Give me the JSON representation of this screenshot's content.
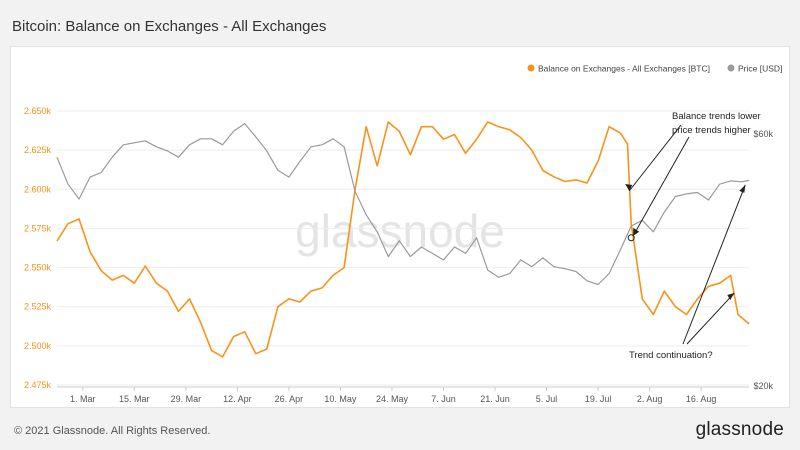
{
  "page": {
    "title": "Bitcoin: Balance on Exchanges - All Exchanges",
    "copyright": "© 2021 Glassnode. All Rights Reserved.",
    "brand": "glassnode",
    "watermark": "glassnode"
  },
  "colors": {
    "balance": "#f7931a",
    "price": "#9a9a9a",
    "left_axis_text": "#f7931a",
    "right_axis_text": "#555555",
    "annotation": "#222222"
  },
  "chart_data": {
    "type": "line",
    "title": "Bitcoin: Balance on Exchanges - All Exchanges",
    "x_ticks": [
      "1. Mar",
      "15. Mar",
      "29. Mar",
      "12. Apr",
      "26. Apr",
      "10. May",
      "24. May",
      "7. Jun",
      "21. Jun",
      "5. Jul",
      "19. Jul",
      "2. Aug",
      "16. Aug"
    ],
    "x_range": [
      "2021-02-22",
      "2021-08-29"
    ],
    "y_left": {
      "ticks": [
        "2.650k",
        "2.625k",
        "2.600k",
        "2.575k",
        "2.550k",
        "2.525k",
        "2.500k",
        "2.475k"
      ],
      "range": [
        2475000,
        2650000
      ]
    },
    "y_right": {
      "scale": "log",
      "ticks": [
        "$60k",
        "$20k"
      ],
      "range": [
        20000,
        60000
      ]
    },
    "legend": {
      "placement": "top-right",
      "items": [
        "Balance on Exchanges - All Exchanges [BTC]",
        "Price [USD]"
      ]
    },
    "series": [
      {
        "name": "Balance on Exchanges - All Exchanges [BTC]",
        "axis": "left",
        "x": [
          "2021-02-22",
          "2021-02-25",
          "2021-02-28",
          "2021-03-03",
          "2021-03-06",
          "2021-03-09",
          "2021-03-12",
          "2021-03-15",
          "2021-03-18",
          "2021-03-21",
          "2021-03-24",
          "2021-03-27",
          "2021-03-30",
          "2021-04-02",
          "2021-04-05",
          "2021-04-08",
          "2021-04-11",
          "2021-04-14",
          "2021-04-17",
          "2021-04-20",
          "2021-04-23",
          "2021-04-26",
          "2021-04-29",
          "2021-05-02",
          "2021-05-05",
          "2021-05-08",
          "2021-05-11",
          "2021-05-14",
          "2021-05-17",
          "2021-05-20",
          "2021-05-23",
          "2021-05-26",
          "2021-05-29",
          "2021-06-01",
          "2021-06-04",
          "2021-06-07",
          "2021-06-10",
          "2021-06-13",
          "2021-06-16",
          "2021-06-19",
          "2021-06-22",
          "2021-06-25",
          "2021-06-28",
          "2021-07-01",
          "2021-07-04",
          "2021-07-07",
          "2021-07-10",
          "2021-07-13",
          "2021-07-16",
          "2021-07-19",
          "2021-07-22",
          "2021-07-25",
          "2021-07-27",
          "2021-07-28",
          "2021-07-31",
          "2021-08-03",
          "2021-08-06",
          "2021-08-09",
          "2021-08-12",
          "2021-08-15",
          "2021-08-18",
          "2021-08-21",
          "2021-08-24",
          "2021-08-26",
          "2021-08-29"
        ],
        "values": [
          2567000,
          2578000,
          2581000,
          2560000,
          2548000,
          2542000,
          2545000,
          2540000,
          2551000,
          2540000,
          2535000,
          2522000,
          2530000,
          2515000,
          2497000,
          2493000,
          2506000,
          2509000,
          2495000,
          2498000,
          2525000,
          2530000,
          2528000,
          2535000,
          2537000,
          2545000,
          2550000,
          2600000,
          2640000,
          2615000,
          2643000,
          2637000,
          2622000,
          2640000,
          2640000,
          2632000,
          2635000,
          2623000,
          2632000,
          2643000,
          2640000,
          2638000,
          2633000,
          2625000,
          2612000,
          2608000,
          2605000,
          2606000,
          2604000,
          2618000,
          2640000,
          2636000,
          2629000,
          2578000,
          2530000,
          2520000,
          2535000,
          2525000,
          2520000,
          2530000,
          2538000,
          2540000,
          2545000,
          2520000,
          2514000
        ]
      },
      {
        "name": "Price [USD]",
        "axis": "right",
        "x": [
          "2021-02-22",
          "2021-02-25",
          "2021-02-28",
          "2021-03-03",
          "2021-03-06",
          "2021-03-09",
          "2021-03-12",
          "2021-03-15",
          "2021-03-18",
          "2021-03-21",
          "2021-03-24",
          "2021-03-27",
          "2021-03-30",
          "2021-04-02",
          "2021-04-05",
          "2021-04-08",
          "2021-04-11",
          "2021-04-14",
          "2021-04-17",
          "2021-04-20",
          "2021-04-23",
          "2021-04-26",
          "2021-04-29",
          "2021-05-02",
          "2021-05-05",
          "2021-05-08",
          "2021-05-11",
          "2021-05-14",
          "2021-05-17",
          "2021-05-20",
          "2021-05-23",
          "2021-05-26",
          "2021-05-29",
          "2021-06-01",
          "2021-06-04",
          "2021-06-07",
          "2021-06-10",
          "2021-06-13",
          "2021-06-16",
          "2021-06-19",
          "2021-06-22",
          "2021-06-25",
          "2021-06-28",
          "2021-07-01",
          "2021-07-04",
          "2021-07-07",
          "2021-07-10",
          "2021-07-13",
          "2021-07-16",
          "2021-07-19",
          "2021-07-22",
          "2021-07-25",
          "2021-07-28",
          "2021-07-31",
          "2021-08-03",
          "2021-08-06",
          "2021-08-09",
          "2021-08-12",
          "2021-08-15",
          "2021-08-18",
          "2021-08-21",
          "2021-08-24",
          "2021-08-27",
          "2021-08-29"
        ],
        "values": [
          54000,
          48000,
          45000,
          49500,
          50500,
          54000,
          57000,
          57500,
          58000,
          56500,
          55500,
          54000,
          57000,
          58500,
          58500,
          57000,
          60500,
          62500,
          59000,
          55500,
          51000,
          49500,
          53000,
          56500,
          57000,
          58500,
          56500,
          46500,
          42000,
          39000,
          35000,
          37500,
          35000,
          36500,
          35500,
          34500,
          36500,
          35500,
          38000,
          33000,
          32000,
          32500,
          34500,
          33500,
          34800,
          33500,
          33200,
          32800,
          31500,
          31000,
          32500,
          36000,
          40000,
          41000,
          39000,
          42500,
          45500,
          46000,
          46300,
          44800,
          48000,
          48700,
          48500,
          48800
        ]
      }
    ],
    "annotations": [
      {
        "text_lines": [
          "Balance trends lower",
          "price trends higher"
        ],
        "target_date": "2021-07-28"
      },
      {
        "text_lines": [
          "Trend continuation?"
        ],
        "target_dates": [
          "2021-08-25",
          "2021-08-29"
        ]
      }
    ]
  }
}
